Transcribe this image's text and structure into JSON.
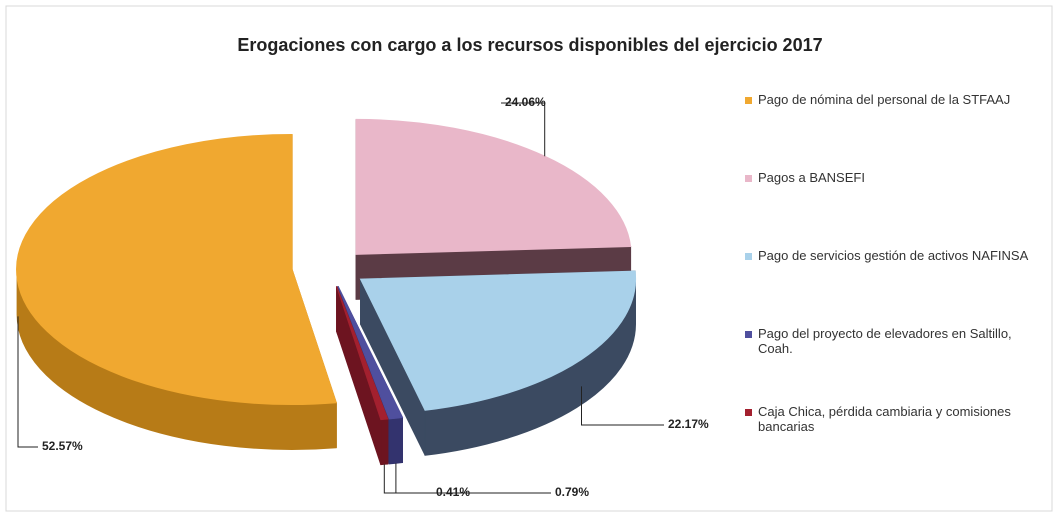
{
  "chart_data": {
    "type": "pie3d",
    "title": "Erogaciones con cargo a los recursos disponibles del  ejercicio 2017",
    "categories": [
      "Pago de nómina del personal de la STFAAJ",
      "Pagos a BANSEFI",
      "Pago de servicios gestión de activos NAFINSA",
      "Pago del proyecto de elevadores en Saltillo, Coah.",
      "Caja Chica, pérdida cambiaria y comisiones bancarias"
    ],
    "values": [
      52.57,
      24.06,
      22.17,
      0.79,
      0.41
    ],
    "value_labels": [
      "52.57%",
      "24.06%",
      "22.17%",
      "0.79%",
      "0.41%"
    ],
    "colors": [
      "#f0a830",
      "#e9b7c9",
      "#a9d1ea",
      "#4f4f9e",
      "#a3202f"
    ],
    "side_colors": [
      "#b77b17",
      "#5b3b45",
      "#3b4a61",
      "#33336e",
      "#6d1420"
    ]
  }
}
